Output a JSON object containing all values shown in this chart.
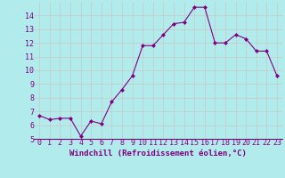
{
  "x": [
    0,
    1,
    2,
    3,
    4,
    5,
    6,
    7,
    8,
    9,
    10,
    11,
    12,
    13,
    14,
    15,
    16,
    17,
    18,
    19,
    20,
    21,
    22,
    23
  ],
  "y": [
    6.7,
    6.4,
    6.5,
    6.5,
    5.2,
    6.3,
    6.1,
    7.7,
    8.6,
    9.6,
    11.8,
    11.8,
    12.6,
    13.4,
    13.5,
    14.6,
    14.6,
    12.0,
    12.0,
    12.6,
    12.3,
    11.4,
    11.4,
    9.6
  ],
  "line_color": "#800080",
  "marker": "D",
  "marker_size": 2.0,
  "bg_color": "#b2ebeb",
  "grid_color": "#c8c8c8",
  "xlabel": "Windchill (Refroidissement éolien,°C)",
  "xlabel_fontsize": 6.5,
  "tick_fontsize": 6.0,
  "xlim": [
    -0.5,
    23.5
  ],
  "ylim": [
    5,
    15
  ],
  "yticks": [
    5,
    6,
    7,
    8,
    9,
    10,
    11,
    12,
    13,
    14
  ],
  "xticks": [
    0,
    1,
    2,
    3,
    4,
    5,
    6,
    7,
    8,
    9,
    10,
    11,
    12,
    13,
    14,
    15,
    16,
    17,
    18,
    19,
    20,
    21,
    22,
    23
  ]
}
